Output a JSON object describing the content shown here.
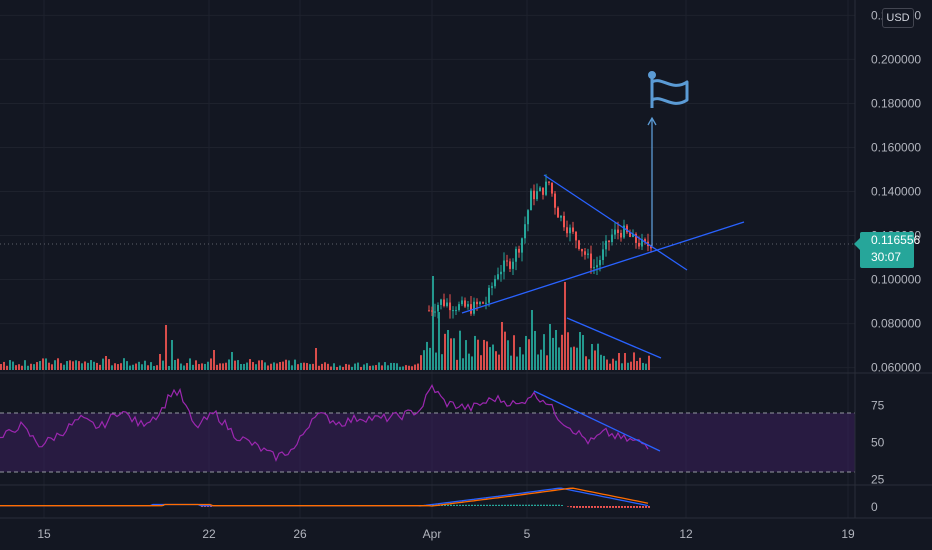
{
  "chart_data": [
    {
      "type": "candlestick",
      "name": "",
      "y_ticks": [
        "0.060000",
        "0.080000",
        "0.100000",
        "0.120000",
        "0.140000",
        "0.160000",
        "0.180000",
        "0.200000",
        "0.220000"
      ],
      "ylim": [
        0.058,
        0.227
      ],
      "currency": "USD",
      "current_price": "0.116556",
      "countdown": "30:07",
      "price_series": [
        {
          "t": "Apr 1",
          "close": 0.088
        },
        {
          "t": "Apr 2",
          "close": 0.092
        },
        {
          "t": "Apr 3",
          "close": 0.095
        },
        {
          "t": "Apr 4",
          "close": 0.11
        },
        {
          "t": "Apr 5",
          "close": 0.128
        },
        {
          "t": "Apr 5",
          "close": 0.148
        },
        {
          "t": "Apr 6",
          "close": 0.132
        },
        {
          "t": "Apr 7",
          "close": 0.11
        },
        {
          "t": "Apr 8",
          "close": 0.122
        },
        {
          "t": "Apr 9",
          "close": 0.117
        }
      ],
      "annotations": [
        "flag-icon",
        "arrow-up",
        "descending-resistance-line",
        "ascending-support-line",
        "volume-downtrend-line"
      ],
      "colors": {
        "up": "#26a69a",
        "down": "#ef5350",
        "drawing": "#2962ff",
        "annotation": "#5b9bd5"
      }
    },
    {
      "type": "line",
      "name": "",
      "y_ticks": [
        "25",
        "50",
        "75"
      ],
      "bands": [
        30,
        70
      ],
      "color": "#9c27b0",
      "trendline": "descending"
    },
    {
      "type": "line",
      "name": "",
      "y_ticks": [
        "0"
      ],
      "series_colors": [
        "#2962ff",
        "#ff6d00"
      ]
    }
  ],
  "x_axis": {
    "ticks": [
      "15",
      "22",
      "26",
      "Apr",
      "5",
      "12",
      "19"
    ]
  }
}
